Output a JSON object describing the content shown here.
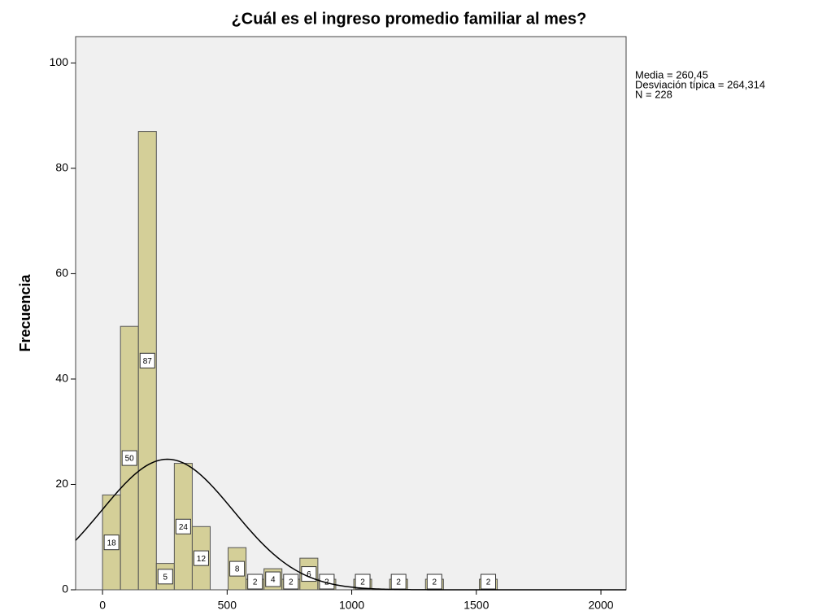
{
  "chart_data": {
    "type": "histogram",
    "title": "¿Cuál es el ingreso promedio familiar al mes?",
    "y_label": "Frecuencia",
    "bins": [
      0,
      72,
      144,
      216,
      288,
      360,
      432,
      504,
      576,
      648,
      720,
      792,
      864,
      936,
      1008,
      1080,
      1152,
      1224,
      1296,
      1368,
      1440,
      1512,
      1584
    ],
    "values": [
      18,
      50,
      87,
      5,
      24,
      12,
      0,
      8,
      2,
      4,
      2,
      6,
      2,
      0,
      2,
      0,
      2,
      0,
      2,
      0,
      0,
      2
    ],
    "color": "#d4cf98",
    "xlim": [
      -108,
      2101
    ],
    "xticks": [
      0,
      500,
      1000,
      1500,
      2000
    ],
    "ylim": [
      0,
      105
    ],
    "yticks": [
      0,
      20,
      40,
      60,
      80,
      100
    ],
    "normal_curve": {
      "mean": 260.45,
      "sd": 264.314,
      "n": 228
    },
    "annotations": [
      "Media = 260,45",
      "Desviación típica = 264,314",
      "N = 228"
    ]
  }
}
